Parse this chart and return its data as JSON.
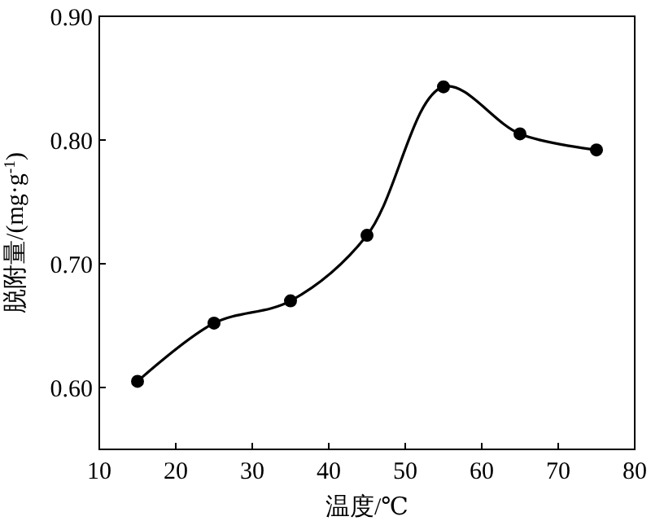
{
  "chart_data": {
    "type": "line",
    "xlabel": "温度/℃",
    "ylabel": "脱附量/(mg·g$^{-1}$)",
    "x": [
      15,
      25,
      35,
      45,
      55,
      65,
      75
    ],
    "series": [
      {
        "color": "#000000",
        "values": [
          0.605,
          0.652,
          0.67,
          0.723,
          0.843,
          0.805,
          0.792
        ]
      }
    ],
    "xlim": [
      10,
      80
    ],
    "xticks": [
      10,
      20,
      30,
      40,
      50,
      60,
      70,
      80
    ],
    "ylim": [
      0.55,
      0.9
    ],
    "yticks": [
      {
        "value": 0.6,
        "label": "0.60"
      },
      {
        "value": 0.7,
        "label": "0.70"
      },
      {
        "value": 0.8,
        "label": "0.80"
      },
      {
        "value": 0.9,
        "label": "0.90"
      }
    ],
    "marker": "circle",
    "line_style": "solid"
  }
}
